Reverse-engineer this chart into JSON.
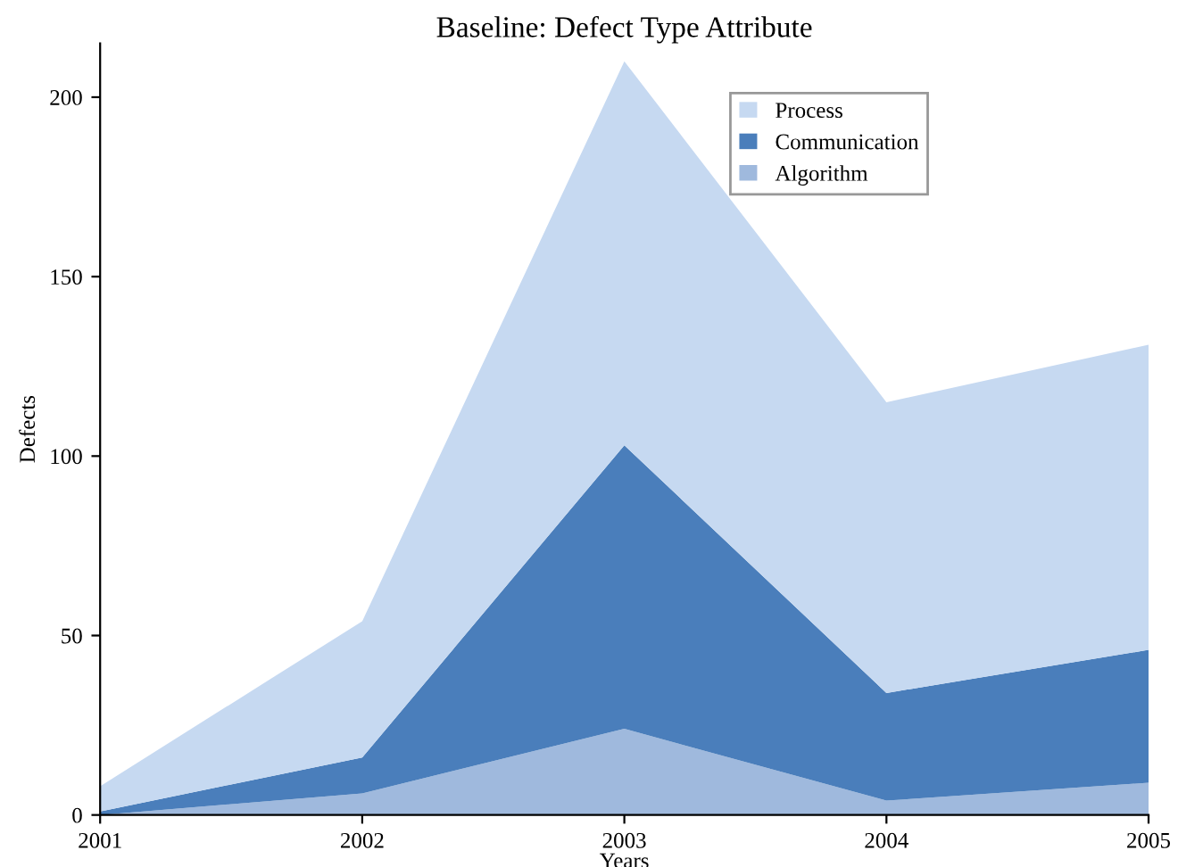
{
  "chart_data": {
    "type": "area",
    "stacked": true,
    "title": "Baseline: Defect Type Attribute",
    "xlabel": "Years",
    "ylabel": "Defects",
    "x": [
      2001,
      2002,
      2003,
      2004,
      2005
    ],
    "series": [
      {
        "name": "Algorithm",
        "color": "#9fb9dd",
        "values": [
          0,
          6,
          24,
          4,
          9
        ]
      },
      {
        "name": "Communication",
        "color": "#4a7ebb",
        "values": [
          1,
          10,
          79,
          30,
          37
        ]
      },
      {
        "name": "Process",
        "color": "#c6d9f1",
        "values": [
          7,
          38,
          107,
          81,
          85
        ]
      }
    ],
    "xlim": [
      2001,
      2005
    ],
    "xticks": [
      2001,
      2002,
      2003,
      2004,
      2005
    ],
    "ylim": [
      0,
      215
    ],
    "yticks": [
      0,
      50,
      100,
      150,
      200
    ],
    "grid": false,
    "legend": "top right"
  }
}
